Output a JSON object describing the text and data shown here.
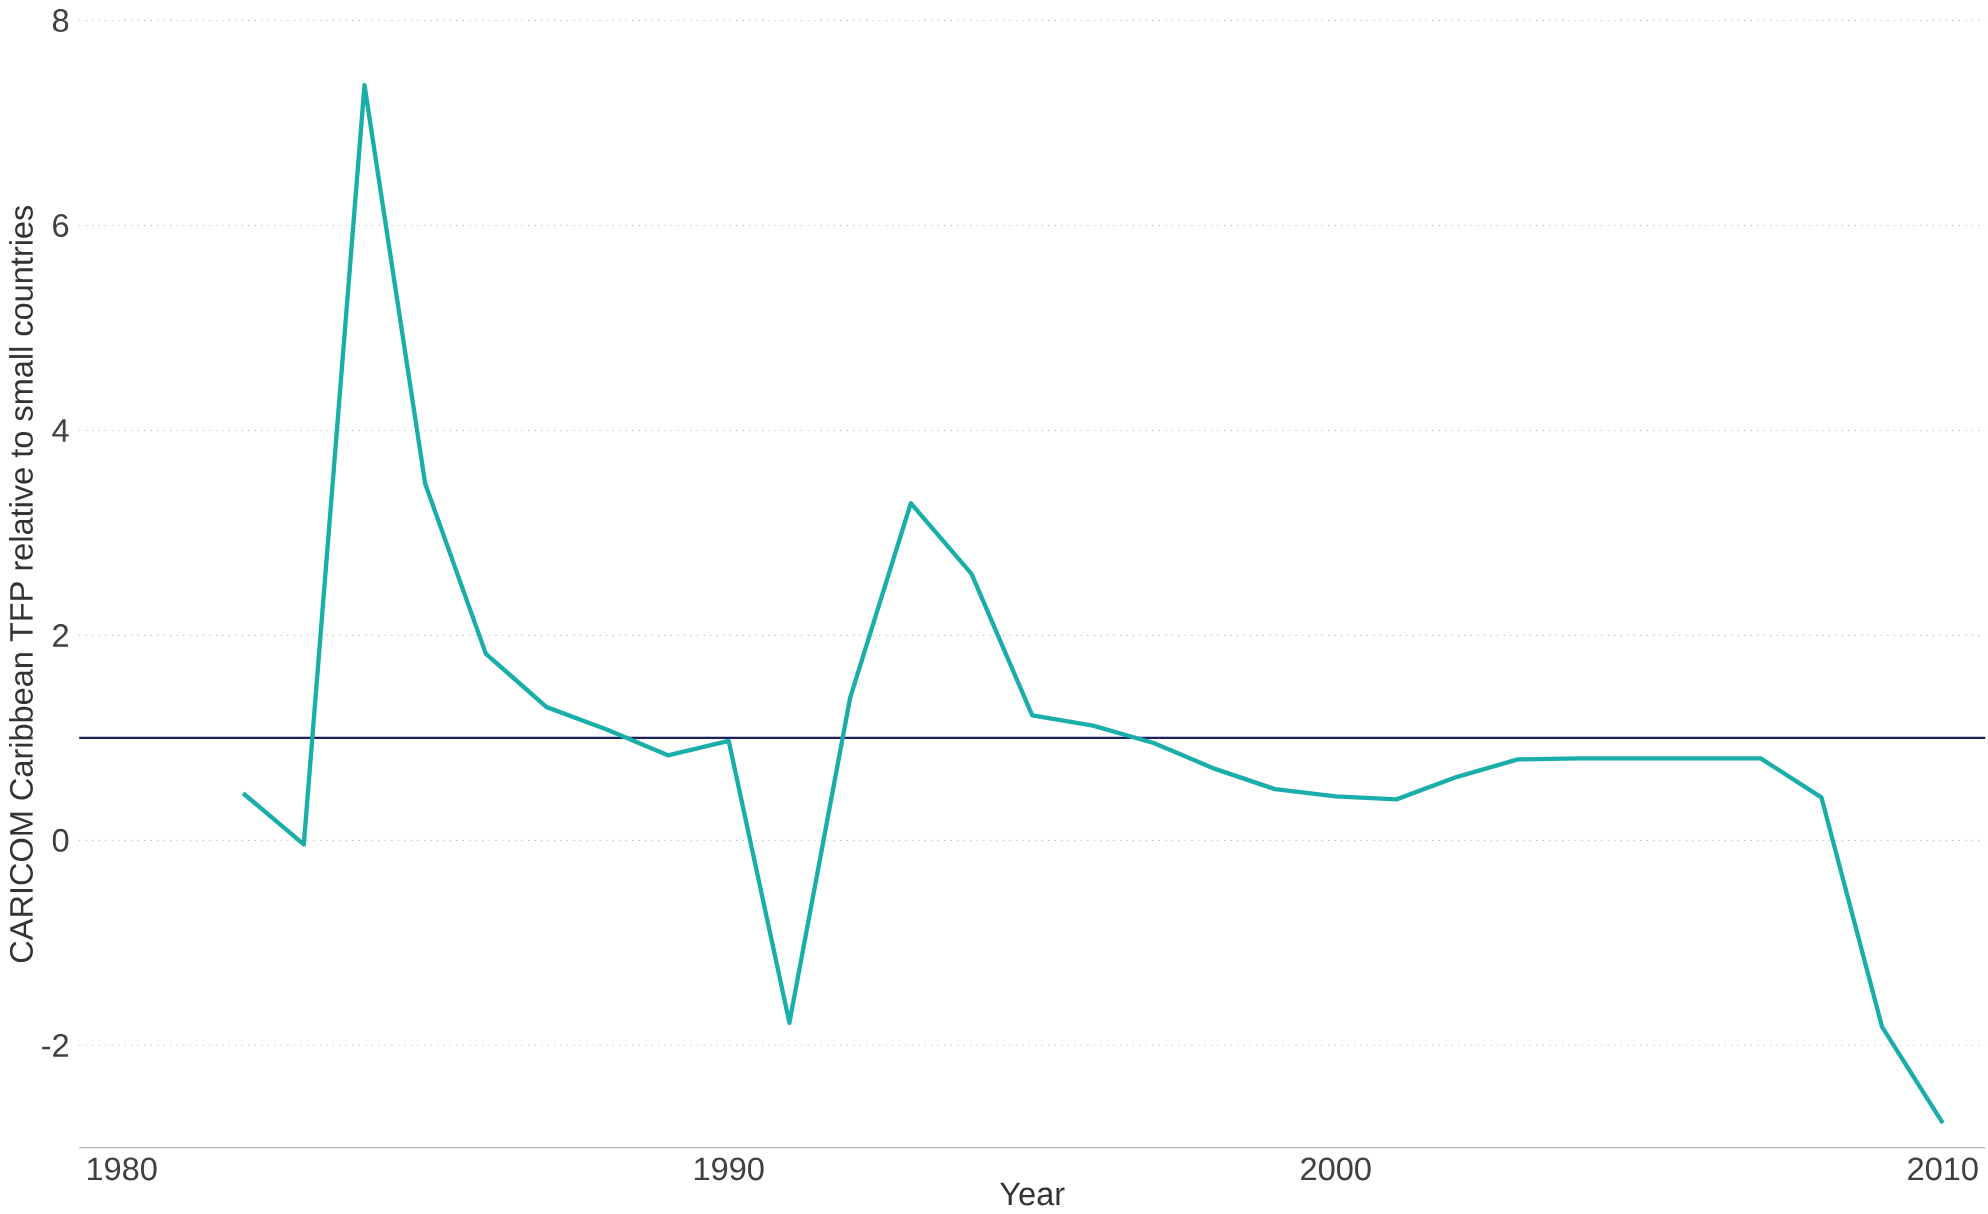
{
  "chart_data": {
    "type": "line",
    "xlabel": "Year",
    "ylabel": "CARICOM Caribbean TFP relative to small countries",
    "x": [
      1982,
      1983,
      1984,
      1985,
      1986,
      1987,
      1988,
      1989,
      1990,
      1991,
      1992,
      1993,
      1994,
      1995,
      1996,
      1997,
      1998,
      1999,
      2000,
      2001,
      2002,
      2003,
      2004,
      2005,
      2006,
      2007,
      2008,
      2009,
      2010
    ],
    "series": [
      {
        "color": "#1aaeaa",
        "values": [
          0.46,
          -0.04,
          7.37,
          3.48,
          1.82,
          1.3,
          1.08,
          0.83,
          0.97,
          -1.78,
          1.39,
          3.29,
          2.6,
          1.22,
          1.12,
          0.95,
          0.7,
          0.5,
          0.43,
          0.4,
          0.62,
          0.79,
          0.8,
          0.8,
          0.8,
          0.8,
          0.42,
          -1.82,
          -2.76
        ]
      }
    ],
    "xlim": [
      1979.3,
      2010.7
    ],
    "ylim": [
      -3,
      8
    ],
    "xticks": [
      1980,
      1990,
      2000,
      2010
    ],
    "yticks": [
      -2,
      0,
      2,
      4,
      6,
      8
    ],
    "grid": "y",
    "marker": "none",
    "line_style": "solid",
    "ref_lines": [
      {
        "axis": "y",
        "value": 1,
        "color": "#1c1f5c"
      }
    ]
  }
}
